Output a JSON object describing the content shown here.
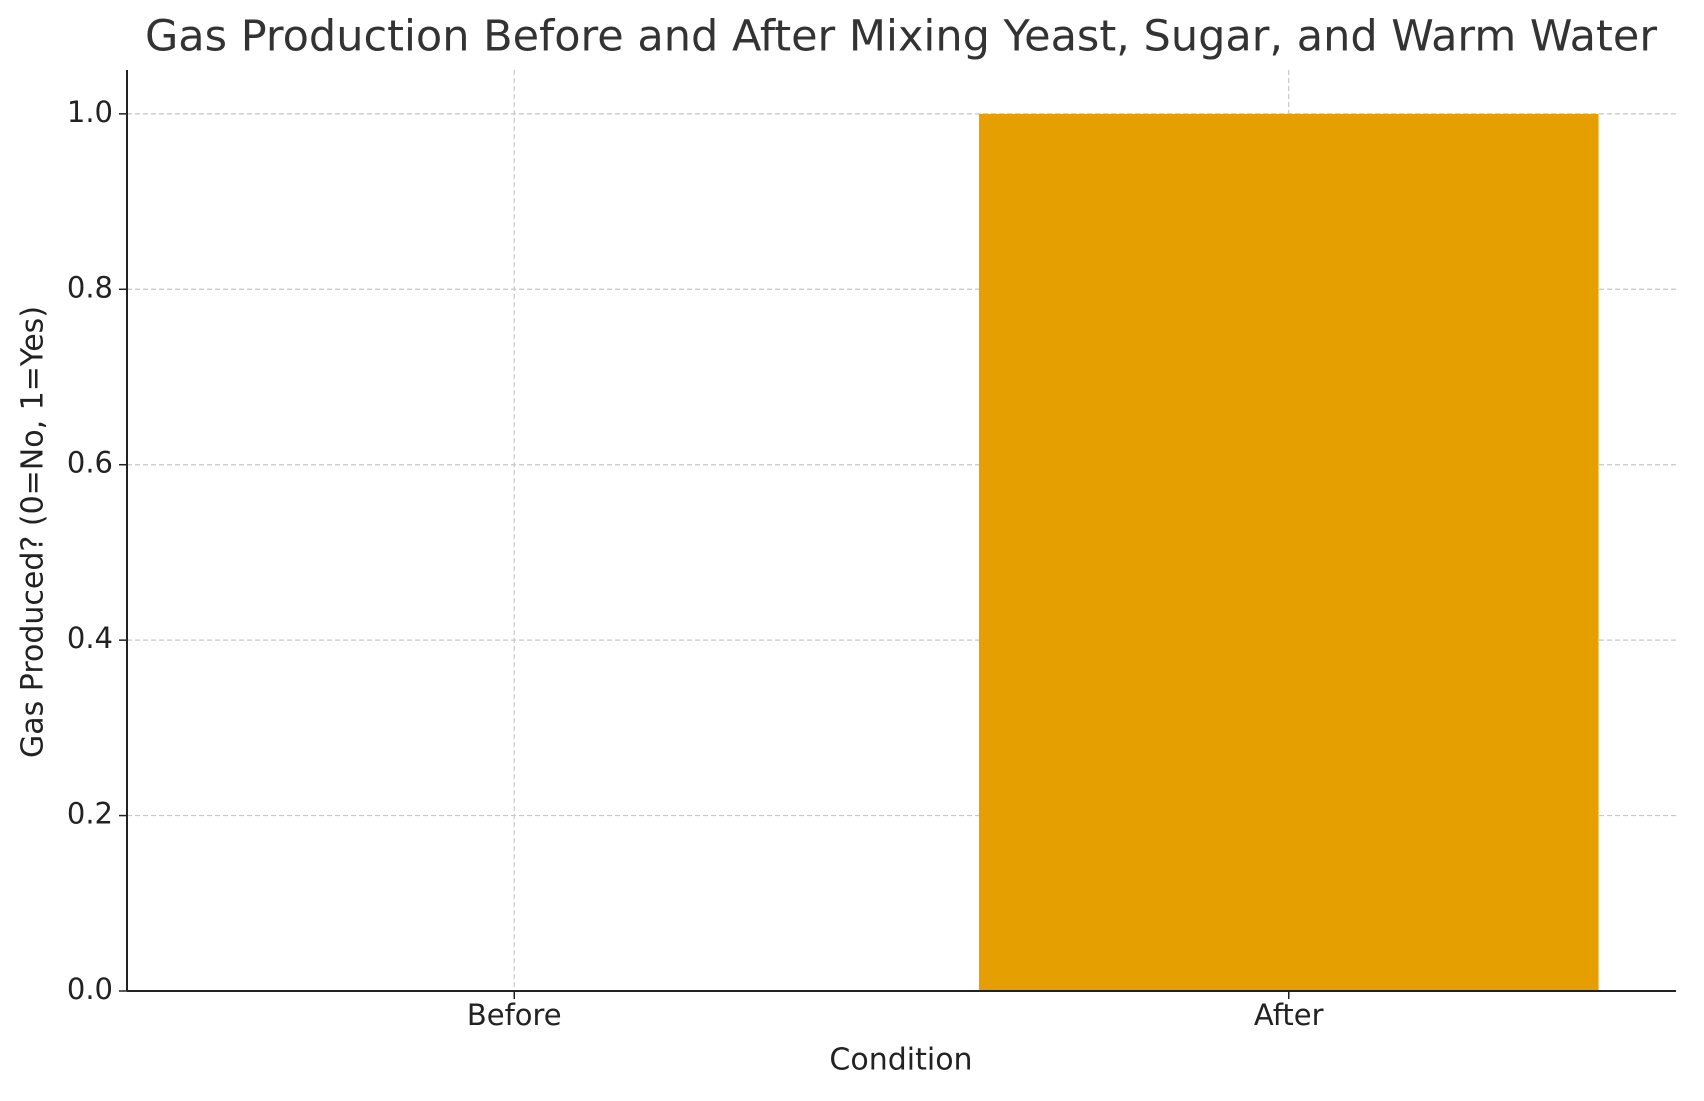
{
  "chart_data": {
    "type": "bar",
    "title": "Gas Production Before and After Mixing Yeast, Sugar, and Warm Water",
    "x_label": "Condition",
    "y_label": "Gas Produced? (0=No, 1=Yes)",
    "categories": [
      "Before",
      "After"
    ],
    "values": [
      0,
      1
    ],
    "color": "#e69f00",
    "ylim": [
      0,
      1.05
    ],
    "yticks": [
      {
        "value": 0,
        "label": "0.0"
      },
      0.2,
      0.4,
      0.6,
      0.8,
      {
        "value": 1,
        "label": "1.0"
      }
    ],
    "grid": true
  }
}
